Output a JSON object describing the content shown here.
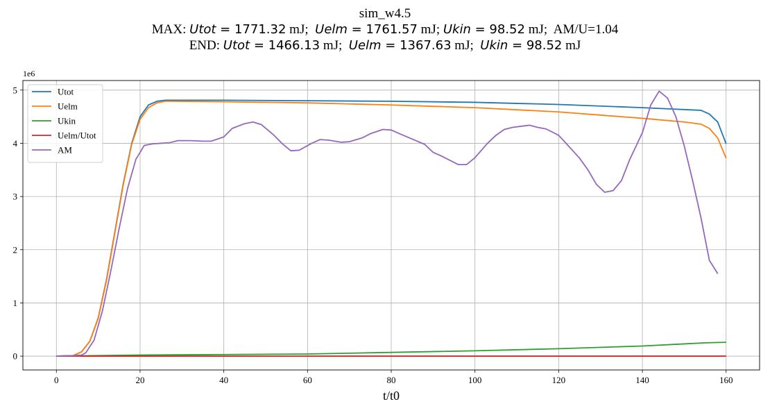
{
  "title_lines": {
    "line1": "sim_w4.5",
    "max_prefix": "MAX: ",
    "utot_label": "Utot",
    "utot_max": "1771.32",
    "uelm_label": "Uelm",
    "uelm_max": "1761.57",
    "ukin_label": "Ukin",
    "ukin_max": "98.52",
    "unit": "mJ",
    "am_ratio": "AM/U=1.04",
    "end_prefix": "END: ",
    "utot_end": "1466.13",
    "uelm_end": "1367.63",
    "ukin_end": "98.52"
  },
  "chart_data": {
    "type": "line",
    "xlabel": "t/t0",
    "ylabel": "",
    "y_offset_label": "1e6",
    "xlim": [
      -8,
      168
    ],
    "ylim": [
      -0.26,
      5.18
    ],
    "xticks": [
      0,
      20,
      40,
      60,
      80,
      100,
      120,
      140,
      160
    ],
    "yticks": [
      0,
      1,
      2,
      3,
      4,
      5
    ],
    "grid": true,
    "legend_position": "top-left",
    "series": [
      {
        "name": "Utot",
        "color": "#1f77b4",
        "x": [
          0,
          4,
          6,
          8,
          10,
          12,
          14,
          16,
          18,
          20,
          22,
          24,
          26,
          28,
          40,
          60,
          80,
          100,
          120,
          140,
          154,
          156,
          158,
          160
        ],
        "y": [
          0,
          0.01,
          0.08,
          0.28,
          0.72,
          1.45,
          2.35,
          3.25,
          4.0,
          4.5,
          4.72,
          4.79,
          4.81,
          4.81,
          4.81,
          4.8,
          4.79,
          4.77,
          4.73,
          4.67,
          4.62,
          4.55,
          4.4,
          3.99
        ]
      },
      {
        "name": "Uelm",
        "color": "#ff7f0e",
        "x": [
          0,
          4,
          6,
          8,
          10,
          12,
          14,
          16,
          18,
          20,
          22,
          24,
          26,
          28,
          40,
          60,
          80,
          100,
          120,
          140,
          150,
          154,
          156,
          158,
          160
        ],
        "y": [
          0,
          0.01,
          0.08,
          0.28,
          0.71,
          1.43,
          2.33,
          3.23,
          3.98,
          4.45,
          4.67,
          4.76,
          4.79,
          4.79,
          4.78,
          4.76,
          4.72,
          4.67,
          4.59,
          4.47,
          4.4,
          4.36,
          4.28,
          4.1,
          3.72
        ]
      },
      {
        "name": "Ukin",
        "color": "#2ca02c",
        "x": [
          0,
          20,
          40,
          60,
          80,
          100,
          120,
          140,
          150,
          155,
          160
        ],
        "y": [
          0,
          0.02,
          0.03,
          0.04,
          0.07,
          0.1,
          0.14,
          0.19,
          0.23,
          0.25,
          0.26
        ]
      },
      {
        "name": "Uelm/Utot",
        "color": "#d62728",
        "x": [
          0,
          160
        ],
        "y": [
          0,
          0
        ]
      },
      {
        "name": "AM",
        "color": "#9467bd",
        "x": [
          0,
          4,
          6,
          7,
          9,
          11,
          13,
          15,
          17,
          19,
          21,
          23,
          25,
          27,
          29,
          32,
          35,
          37,
          40,
          42,
          45,
          47,
          49,
          52,
          54,
          56,
          58,
          61,
          63,
          65,
          68,
          70,
          73,
          75,
          78,
          80,
          82,
          85,
          88,
          90,
          92,
          94,
          96,
          98,
          100,
          103,
          105,
          107,
          109,
          111,
          113,
          115,
          117,
          120,
          122,
          125,
          127,
          129,
          131,
          133,
          135,
          137,
          140,
          142,
          144,
          146,
          148,
          150,
          152,
          154,
          156,
          158
        ],
        "y": [
          0,
          0.01,
          0.02,
          0.06,
          0.3,
          0.85,
          1.6,
          2.4,
          3.15,
          3.7,
          3.96,
          3.99,
          4.0,
          4.01,
          4.05,
          4.05,
          4.04,
          4.04,
          4.12,
          4.28,
          4.37,
          4.4,
          4.35,
          4.15,
          3.99,
          3.86,
          3.87,
          4.0,
          4.07,
          4.06,
          4.02,
          4.03,
          4.1,
          4.18,
          4.26,
          4.25,
          4.18,
          4.08,
          3.98,
          3.83,
          3.76,
          3.68,
          3.6,
          3.6,
          3.73,
          4.0,
          4.15,
          4.26,
          4.3,
          4.32,
          4.34,
          4.3,
          4.27,
          4.15,
          3.98,
          3.72,
          3.5,
          3.23,
          3.08,
          3.11,
          3.3,
          3.7,
          4.2,
          4.72,
          4.98,
          4.85,
          4.5,
          3.95,
          3.3,
          2.6,
          1.8,
          1.55
        ]
      }
    ]
  }
}
